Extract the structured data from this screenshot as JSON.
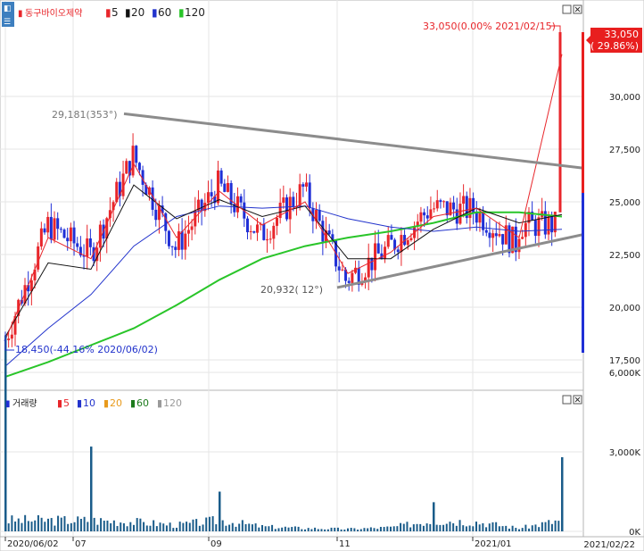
{
  "price_panel": {
    "legend": {
      "title": "동구바이오제약",
      "ma_items": [
        {
          "label": "5",
          "color": "#e8262b"
        },
        {
          "label": "20",
          "color": "#111111"
        },
        {
          "label": "60",
          "color": "#2233cc"
        },
        {
          "label": "120",
          "color": "#29c529"
        }
      ]
    },
    "annotations": {
      "last": "33,050(0.00% 2021/02/15)",
      "high": "29,181(353°)",
      "low_trend": "20,932( 12°)",
      "start": "18,450(-44.16% 2020/06/02)"
    },
    "current_price": "33,050",
    "current_change": "( 29.86%)"
  },
  "volume_panel": {
    "legend": {
      "title": "거래량",
      "ma_items": [
        {
          "label": "5",
          "color": "#e8262b"
        },
        {
          "label": "10",
          "color": "#2233cc"
        },
        {
          "label": "20",
          "color": "#e89a1c"
        },
        {
          "label": "60",
          "color": "#1b7a1b"
        },
        {
          "label": "120",
          "color": "#9a9a9a"
        }
      ]
    }
  },
  "x_axis": {
    "labels": [
      "2020/06/02",
      "07",
      "09",
      "11",
      "2021/01"
    ],
    "end_label": "2021/02/22"
  },
  "colors": {
    "up": "#e8262b",
    "down": "#1f2fd6",
    "ma5": "#e8262b",
    "ma20": "#111111",
    "ma60": "#2233cc",
    "ma120": "#29c529",
    "trendline": "#8c8c8c",
    "volume_bar": "#1a5c8a",
    "grid": "#e6e6e6"
  },
  "chart_data": [
    {
      "type": "candlestick",
      "title": "동구바이오제약",
      "ylim": [
        16500,
        34500
      ],
      "yticks": [
        17500,
        20000,
        22500,
        25000,
        27500,
        30000
      ],
      "ytick_labels": [
        "17,500",
        "20,000",
        "22,500",
        "25,000",
        "27,500",
        "30,000"
      ],
      "x_dates": [
        "2020/06/02",
        "2020/06/22",
        "2020/07/13",
        "2020/08/03",
        "2020/08/24",
        "2020/09/14",
        "2020/10/05",
        "2020/10/26",
        "2020/11/16",
        "2020/12/07",
        "2020/12/28",
        "2021/01/18",
        "2021/02/08",
        "2021/02/15"
      ],
      "close": [
        18450,
        23900,
        22500,
        27200,
        22800,
        25800,
        23400,
        25600,
        21300,
        22800,
        24700,
        24600,
        23000,
        33050
      ],
      "ma5": [
        18450,
        23300,
        22300,
        26800,
        23300,
        25500,
        23900,
        25000,
        21600,
        22600,
        24300,
        24700,
        23300,
        32000
      ],
      "ma20": [
        18600,
        22100,
        21800,
        25800,
        24200,
        25100,
        24300,
        24800,
        22300,
        22300,
        23700,
        24700,
        24000,
        24400
      ],
      "ma60": [
        17200,
        19000,
        20600,
        22900,
        24300,
        24800,
        24700,
        24800,
        24200,
        23800,
        23600,
        23800,
        23600,
        23700
      ],
      "ma120": [
        16700,
        17400,
        18200,
        19000,
        20100,
        21300,
        22300,
        22900,
        23300,
        23600,
        24000,
        24500,
        24500,
        24300
      ],
      "events": [
        {
          "label": "29,181(353°)",
          "value": 29181
        },
        {
          "label": "20,932( 12°)",
          "value": 20932
        },
        {
          "label": "33,050(0.00% 2021/02/15)",
          "value": 33050
        },
        {
          "label": "18,450(-44.16% 2020/06/02)",
          "value": 18450
        }
      ]
    },
    {
      "type": "bar",
      "title": "거래량",
      "ylim": [
        0,
        7500
      ],
      "yticks": [
        0,
        3000,
        6000
      ],
      "ytick_labels": [
        "0K",
        "3,000K",
        "6,000K"
      ],
      "x_dates": [
        "2020/06/02",
        "2020/06/22",
        "2020/07/13",
        "2020/08/03",
        "2020/08/24",
        "2020/09/14",
        "2020/10/05",
        "2020/10/26",
        "2020/11/16",
        "2020/12/07",
        "2020/12/28",
        "2021/01/18",
        "2021/02/08",
        "2021/02/15"
      ],
      "values": [
        7400,
        700,
        3200,
        600,
        400,
        1500,
        300,
        200,
        150,
        250,
        1100,
        600,
        200,
        2800
      ],
      "unit": "K"
    }
  ]
}
